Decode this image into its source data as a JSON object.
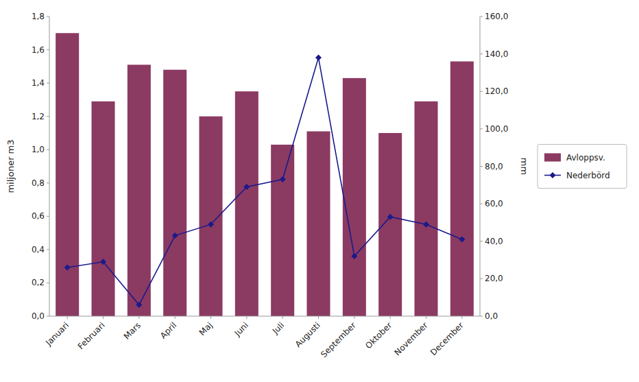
{
  "chart_data": {
    "type": "bar",
    "categories": [
      "Januari",
      "Februari",
      "Mars",
      "April",
      "Maj",
      "Juni",
      "Juli",
      "Augusti",
      "September",
      "Oktober",
      "November",
      "December"
    ],
    "series": [
      {
        "name": "Avloppsv.",
        "type": "bar",
        "color": "#8b3a62",
        "values": [
          1.7,
          1.29,
          1.51,
          1.48,
          1.2,
          1.35,
          1.03,
          1.11,
          1.43,
          1.1,
          1.29,
          1.53
        ]
      },
      {
        "name": "Nederbörd",
        "type": "line",
        "axis": "y2",
        "color": "#1a1a8c",
        "marker": "diamond",
        "values": [
          26,
          29,
          6,
          43,
          49,
          69,
          73,
          138,
          32,
          53,
          49,
          41
        ]
      }
    ],
    "ylabel": "miljoner m3",
    "y2label": "mm",
    "ylim": [
      0.0,
      1.8
    ],
    "yticks": [
      {
        "value": 0.0,
        "label": "0,0"
      },
      {
        "value": 0.2,
        "label": "0,2"
      },
      {
        "value": 0.4,
        "label": "0,4"
      },
      {
        "value": 0.6,
        "label": "0,6"
      },
      {
        "value": 0.8,
        "label": "0,8"
      },
      {
        "value": 1.0,
        "label": "1,0"
      },
      {
        "value": 1.2,
        "label": "1,2"
      },
      {
        "value": 1.4,
        "label": "1,4"
      },
      {
        "value": 1.6,
        "label": "1,6"
      },
      {
        "value": 1.8,
        "label": "1,8"
      }
    ],
    "y2lim": [
      0.0,
      160.0
    ],
    "y2ticks": [
      {
        "value": 0.0,
        "label": "0,0"
      },
      {
        "value": 20.0,
        "label": "20,0"
      },
      {
        "value": 40.0,
        "label": "40,0"
      },
      {
        "value": 60.0,
        "label": "60,0"
      },
      {
        "value": 80.0,
        "label": "80,0"
      },
      {
        "value": 100.0,
        "label": "100,0"
      },
      {
        "value": 120.0,
        "label": "120,0"
      },
      {
        "value": 140.0,
        "label": "140,0"
      },
      {
        "value": 160.0,
        "label": "160,0"
      }
    ],
    "grid": false,
    "legend": "right"
  }
}
